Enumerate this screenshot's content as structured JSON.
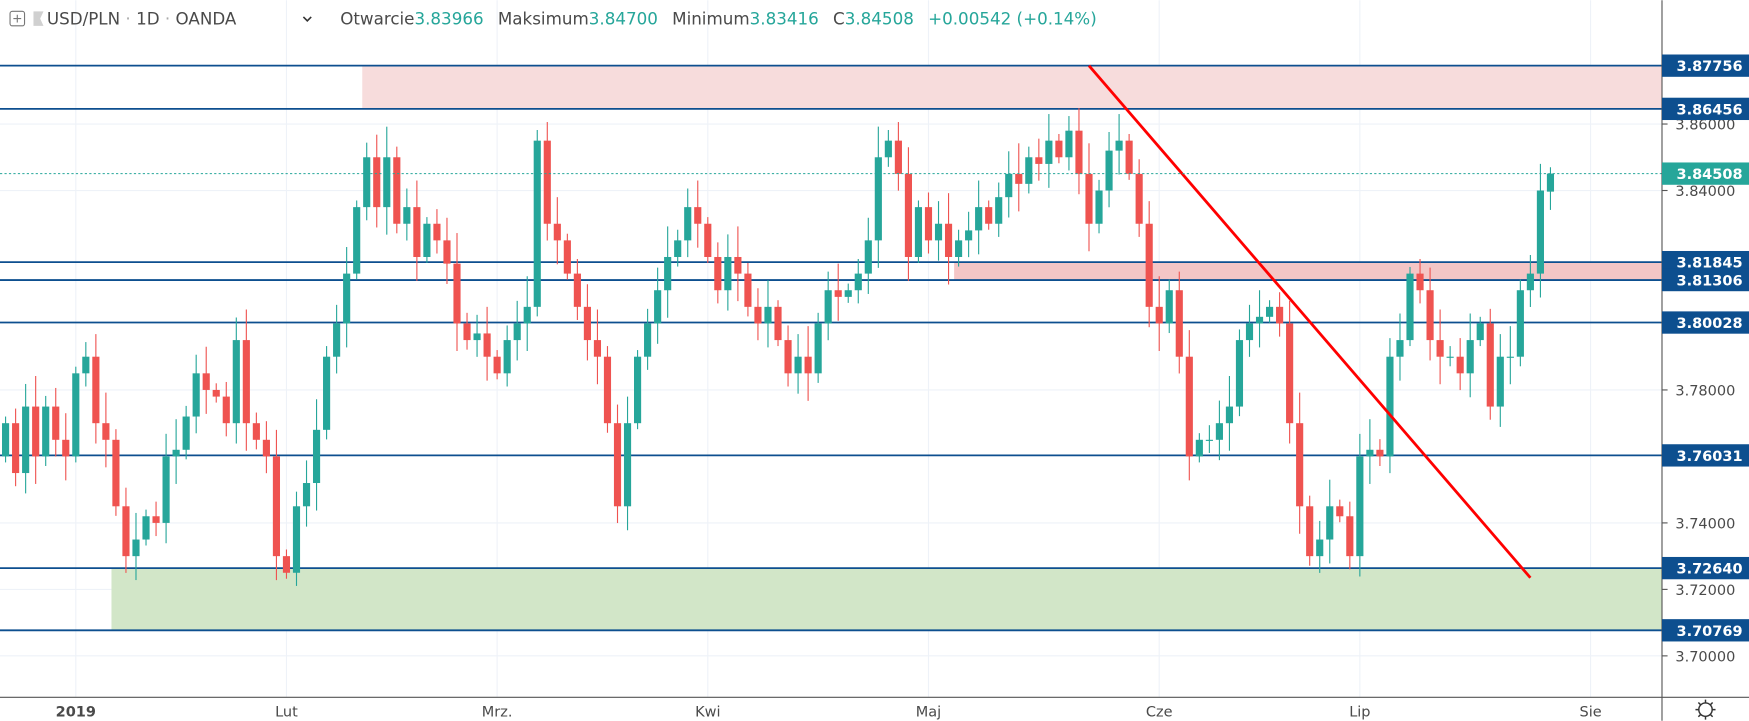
{
  "header": {
    "symbol": "USD/PLN",
    "interval": "1D",
    "source": "OANDA",
    "open_label": "Otwarcie",
    "open": "3.83966",
    "high_label": "Maksimum",
    "high": "3.84700",
    "low_label": "Minimum",
    "low": "3.83416",
    "close_label": "C",
    "close": "3.84508",
    "change": "+0.00542 (+0.14%)"
  },
  "colors": {
    "up": "#26a69a",
    "down": "#ef5350",
    "level": "#0d4f8f",
    "trend": "#ff0000",
    "zone_red": "#f4c6c6",
    "zone_green": "#d2e6c8"
  },
  "chart_data": {
    "type": "candlestick",
    "title": "USD/PLN 1D OANDA",
    "ylim": [
      3.69,
      3.88
    ],
    "y_ticks": [
      "3.86000",
      "3.84000",
      "3.78000",
      "3.74000",
      "3.72000",
      "3.70000"
    ],
    "x_labels": [
      {
        "label": "2019",
        "bar": 7
      },
      {
        "label": "Lut",
        "bar": 28
      },
      {
        "label": "Mrz.",
        "bar": 49
      },
      {
        "label": "Kwi",
        "bar": 70
      },
      {
        "label": "Maj",
        "bar": 92
      },
      {
        "label": "Cze",
        "bar": 115
      },
      {
        "label": "Lip",
        "bar": 135
      },
      {
        "label": "Sie",
        "bar": 158
      }
    ],
    "first_open": 3.76,
    "closes": [
      3.77,
      3.755,
      3.775,
      3.76,
      3.775,
      3.765,
      3.76,
      3.785,
      3.79,
      3.77,
      3.765,
      3.745,
      3.73,
      3.735,
      3.742,
      3.74,
      3.76,
      3.762,
      3.772,
      3.785,
      3.78,
      3.778,
      3.77,
      3.795,
      3.77,
      3.765,
      3.76,
      3.73,
      3.725,
      3.745,
      3.752,
      3.768,
      3.79,
      3.8,
      3.815,
      3.835,
      3.85,
      3.835,
      3.85,
      3.83,
      3.835,
      3.82,
      3.83,
      3.825,
      3.818,
      3.8,
      3.795,
      3.797,
      3.79,
      3.785,
      3.795,
      3.8,
      3.805,
      3.855,
      3.83,
      3.825,
      3.815,
      3.805,
      3.795,
      3.79,
      3.77,
      3.745,
      3.77,
      3.79,
      3.8,
      3.81,
      3.82,
      3.825,
      3.835,
      3.83,
      3.82,
      3.81,
      3.82,
      3.815,
      3.805,
      3.8,
      3.805,
      3.795,
      3.785,
      3.79,
      3.785,
      3.8,
      3.81,
      3.808,
      3.81,
      3.815,
      3.825,
      3.85,
      3.855,
      3.845,
      3.82,
      3.835,
      3.825,
      3.83,
      3.82,
      3.825,
      3.828,
      3.835,
      3.83,
      3.838,
      3.845,
      3.842,
      3.85,
      3.848,
      3.855,
      3.85,
      3.858,
      3.845,
      3.83,
      3.84,
      3.852,
      3.855,
      3.845,
      3.83,
      3.805,
      3.8,
      3.81,
      3.79,
      3.76,
      3.765,
      3.765,
      3.77,
      3.775,
      3.795,
      3.8,
      3.802,
      3.805,
      3.8,
      3.77,
      3.745,
      3.73,
      3.735,
      3.745,
      3.742,
      3.73,
      3.76,
      3.762,
      3.76,
      3.79,
      3.795,
      3.815,
      3.81,
      3.795,
      3.79,
      3.79,
      3.785,
      3.795,
      3.8,
      3.775,
      3.79,
      3.79,
      3.81,
      3.815,
      3.84,
      3.84508
    ],
    "last_candle": {
      "open": 3.83966,
      "high": 3.847,
      "low": 3.83416,
      "close": 3.84508
    },
    "levels": [
      "3.87756",
      "3.86456",
      "3.81845",
      "3.81306",
      "3.80028",
      "3.76031",
      "3.72640",
      "3.70769"
    ],
    "current_price": "3.84508",
    "zones": [
      {
        "kind": "resistance",
        "from": 3.86456,
        "to": 3.87756,
        "start_bar": 36
      },
      {
        "kind": "resistance",
        "from": 3.81306,
        "to": 3.81845,
        "start_bar": 95
      },
      {
        "kind": "support",
        "from": 3.70769,
        "to": 3.7264,
        "start_bar": 11
      }
    ],
    "trendline": {
      "start_bar": 108,
      "start_price": 3.87756,
      "end_bar": 152,
      "end_price": 3.7235
    }
  }
}
